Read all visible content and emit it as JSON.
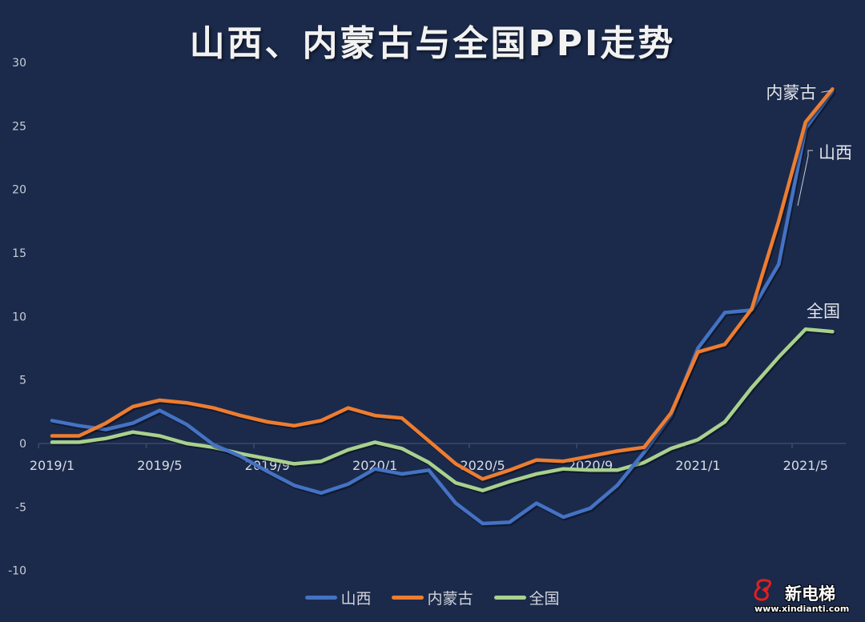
{
  "chart_data": {
    "type": "line",
    "title": "山西、内蒙古与全国PPI走势",
    "xlabel": "",
    "ylabel": "",
    "ylim": [
      -10,
      30
    ],
    "yticks": [
      30,
      25,
      20,
      15,
      10,
      5,
      0,
      -5,
      -10
    ],
    "grid": false,
    "legend_position": "bottom",
    "x": [
      "2019/1",
      "2019/2",
      "2019/3",
      "2019/4",
      "2019/5",
      "2019/6",
      "2019/7",
      "2019/8",
      "2019/9",
      "2019/10",
      "2019/11",
      "2019/12",
      "2020/1",
      "2020/2",
      "2020/3",
      "2020/4",
      "2020/5",
      "2020/6",
      "2020/7",
      "2020/8",
      "2020/9",
      "2020/10",
      "2020/11",
      "2020/12",
      "2021/1",
      "2021/2",
      "2021/3",
      "2021/4",
      "2021/5",
      "2021/6"
    ],
    "xtick_labels": [
      {
        "label": "2019/1",
        "index": 0
      },
      {
        "label": "2019/5",
        "index": 4
      },
      {
        "label": "2019/9",
        "index": 8
      },
      {
        "label": "2020/1",
        "index": 12
      },
      {
        "label": "2020/5",
        "index": 16
      },
      {
        "label": "2020/9",
        "index": 20
      },
      {
        "label": "2021/1",
        "index": 24
      },
      {
        "label": "2021/5",
        "index": 28
      }
    ],
    "series": [
      {
        "name": "山西",
        "color": "#4472c4",
        "values": [
          1.8,
          1.4,
          1.1,
          1.6,
          2.6,
          1.5,
          -0.1,
          -1.0,
          -2.2,
          -3.3,
          -3.9,
          -3.2,
          -2.0,
          -2.4,
          -2.1,
          -4.7,
          -6.3,
          -6.2,
          -4.7,
          -5.8,
          -5.1,
          -3.3,
          -0.7,
          2.2,
          7.5,
          10.3,
          10.5,
          14.1,
          24.8,
          27.7
        ]
      },
      {
        "name": "内蒙古",
        "color": "#ed7d31",
        "values": [
          0.6,
          0.6,
          1.6,
          2.9,
          3.4,
          3.2,
          2.8,
          2.2,
          1.7,
          1.4,
          1.8,
          2.8,
          2.2,
          2.0,
          0.2,
          -1.6,
          -2.8,
          -2.1,
          -1.3,
          -1.4,
          -1.0,
          -0.6,
          -0.3,
          2.4,
          7.2,
          7.8,
          10.6,
          17.5,
          25.3,
          27.9
        ]
      },
      {
        "name": "全国",
        "color": "#a9d18e",
        "values": [
          0.1,
          0.1,
          0.4,
          0.9,
          0.6,
          0.0,
          -0.3,
          -0.8,
          -1.2,
          -1.6,
          -1.4,
          -0.5,
          0.1,
          -0.4,
          -1.5,
          -3.1,
          -3.7,
          -3.0,
          -2.4,
          -2.0,
          -2.1,
          -2.1,
          -1.5,
          -0.4,
          0.3,
          1.7,
          4.4,
          6.8,
          9.0,
          8.8
        ]
      }
    ],
    "annotations": [
      {
        "text": "内蒙古",
        "series": "内蒙古"
      },
      {
        "text": "山西",
        "series": "山西"
      },
      {
        "text": "全国",
        "series": "全国"
      }
    ]
  },
  "legend": {
    "items": [
      {
        "label": "山西",
        "color": "#4472c4"
      },
      {
        "label": "内蒙古",
        "color": "#ed7d31"
      },
      {
        "label": "全国",
        "color": "#a9d18e"
      }
    ]
  },
  "watermark": {
    "name": "新电梯",
    "url": "www.xindianti.com"
  }
}
